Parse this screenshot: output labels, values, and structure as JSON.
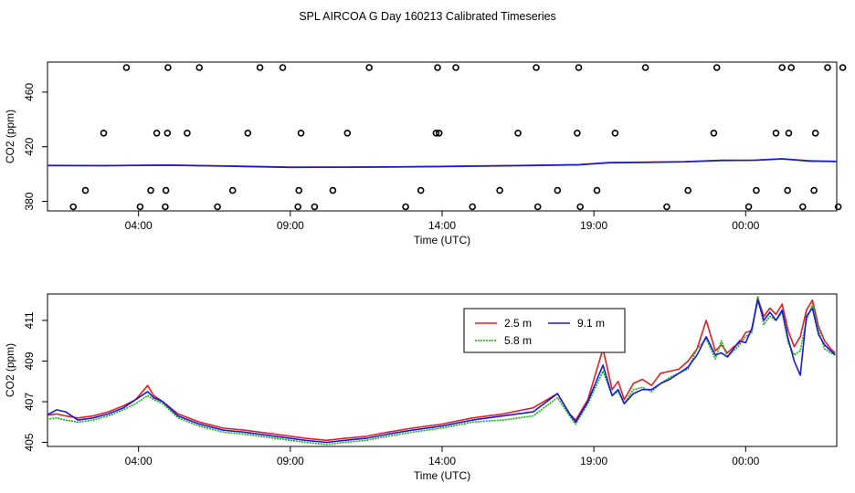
{
  "page_title": "SPL AIRCOA G  Day 160213  Calibrated Timeseries",
  "colors": {
    "red": "#e02020",
    "green": "#10b010",
    "blue": "#1818e0",
    "frame": "#000000"
  },
  "chart_data": [
    {
      "type": "scatter+line",
      "panel": "top",
      "title": "",
      "xlabel": "Time (UTC)",
      "ylabel": "CO2 (ppm)",
      "xlim": [
        0,
        26
      ],
      "ylim": [
        373,
        482
      ],
      "x_ticks": [
        3,
        8,
        13,
        18,
        23
      ],
      "x_tick_labels": [
        "04:00",
        "09:00",
        "14:00",
        "19:00",
        "00:00"
      ],
      "y_ticks": [
        380,
        420,
        460
      ],
      "y_tick_labels": [
        "380",
        "420",
        "460"
      ],
      "calibration_points": {
        "name": "calibration standards",
        "x": [
          0.85,
          1.25,
          1.85,
          2.6,
          3.05,
          3.4,
          3.6,
          3.88,
          3.9,
          3.95,
          3.97,
          4.6,
          5.0,
          5.6,
          6.1,
          6.6,
          7.0,
          7.75,
          8.25,
          8.28,
          8.35,
          8.8,
          9.4,
          9.88,
          10.6,
          11.8,
          12.3,
          12.8,
          12.85,
          12.9,
          13.45,
          14.0,
          14.9,
          15.5,
          16.1,
          16.15,
          16.8,
          17.45,
          17.5,
          17.55,
          18.1,
          18.7,
          19.7,
          20.4,
          21.1,
          21.95,
          22.05,
          23.1,
          23.35,
          24.0,
          24.2,
          24.38,
          24.42,
          24.5,
          24.88,
          25.25,
          25.3,
          25.7,
          26.05,
          26.2
        ],
        "y": [
          376,
          388,
          430,
          478,
          376,
          388,
          430,
          376,
          388,
          430,
          478,
          430,
          478,
          376,
          388,
          430,
          478,
          478,
          376,
          388,
          430,
          376,
          388,
          430,
          478,
          376,
          388,
          430,
          478,
          430,
          478,
          376,
          388,
          430,
          478,
          376,
          388,
          430,
          478,
          376,
          388,
          430,
          478,
          376,
          388,
          430,
          478,
          376,
          388,
          430,
          478,
          388,
          430,
          478,
          376,
          388,
          430,
          478,
          376,
          478
        ]
      },
      "series": [
        {
          "name": "2.5 m",
          "color": "red",
          "x": [
            -0.2,
            2,
            4,
            6,
            8,
            10,
            12,
            14,
            16,
            17.5,
            18.5,
            19.8,
            21,
            22.2,
            23.3,
            24.2,
            25.1,
            26
          ],
          "y": [
            406.2,
            406.2,
            406.6,
            405.9,
            405.0,
            405.1,
            405.3,
            405.9,
            406.4,
            406.9,
            408.4,
            408.8,
            409.1,
            410.1,
            410.2,
            411.2,
            409.7,
            409.2
          ]
        },
        {
          "name": "5.8 m",
          "color": "green",
          "x": [
            -0.2,
            2,
            4,
            6,
            8,
            10,
            12,
            14,
            16,
            17.5,
            18.5,
            19.8,
            21,
            22.2,
            23.3,
            24.2,
            25.1,
            26
          ],
          "y": [
            406.1,
            406.1,
            406.4,
            405.7,
            404.8,
            404.9,
            405.2,
            405.6,
            406.1,
            406.7,
            408.1,
            408.5,
            408.9,
            409.8,
            410.0,
            411.0,
            409.4,
            409.0
          ]
        },
        {
          "name": "9.1 m",
          "color": "blue",
          "x": [
            -0.2,
            2,
            4,
            6,
            8,
            10,
            12,
            14,
            16,
            17.5,
            18.5,
            19.8,
            21,
            22.2,
            23.3,
            24.2,
            25.1,
            26
          ],
          "y": [
            406.3,
            406.2,
            406.5,
            405.8,
            404.9,
            405.0,
            405.3,
            405.8,
            406.3,
            406.8,
            408.3,
            408.6,
            409.0,
            410.0,
            410.1,
            411.1,
            409.5,
            409.3
          ]
        }
      ]
    },
    {
      "type": "line",
      "panel": "bottom",
      "title": "",
      "xlabel": "Time (UTC)",
      "ylabel": "CO2 (ppm)",
      "xlim": [
        0,
        26
      ],
      "ylim": [
        404.8,
        412.3
      ],
      "x_ticks": [
        3,
        8,
        13,
        18,
        23
      ],
      "x_tick_labels": [
        "04:00",
        "09:00",
        "14:00",
        "19:00",
        "00:00"
      ],
      "y_ticks": [
        405,
        407,
        409,
        411
      ],
      "y_tick_labels": [
        "405",
        "407",
        "409",
        "411"
      ],
      "legend": {
        "position": "top-right"
      },
      "series": [
        {
          "name": "2.5 m",
          "color": "red",
          "x": [
            -0.2,
            0.3,
            0.6,
            1.0,
            1.5,
            2.0,
            2.5,
            2.9,
            3.3,
            3.5,
            3.8,
            4.3,
            5.0,
            5.8,
            6.5,
            7.5,
            8.5,
            9.2,
            9.8,
            10.5,
            11.2,
            12.0,
            13.0,
            14.0,
            15.0,
            16.0,
            16.8,
            17.2,
            17.4,
            17.8,
            18.3,
            18.6,
            18.8,
            19.0,
            19.3,
            19.6,
            19.9,
            20.2,
            20.5,
            20.8,
            21.1,
            21.4,
            21.7,
            22.0,
            22.2,
            22.4,
            22.6,
            22.8,
            23.0,
            23.2,
            23.4,
            23.6,
            23.8,
            24.0,
            24.2,
            24.4,
            24.6,
            24.8,
            25.0,
            25.2,
            25.4,
            25.6,
            25.8,
            25.95
          ],
          "y": [
            406.3,
            406.4,
            406.3,
            406.2,
            406.3,
            406.5,
            406.8,
            407.1,
            407.8,
            407.3,
            407.0,
            406.4,
            406.0,
            405.7,
            405.6,
            405.4,
            405.2,
            405.1,
            405.2,
            405.3,
            405.5,
            405.7,
            405.9,
            406.2,
            406.4,
            406.7,
            407.4,
            406.4,
            406.1,
            407.1,
            409.6,
            407.6,
            408.0,
            407.1,
            407.9,
            408.1,
            407.8,
            408.4,
            408.5,
            408.6,
            409.0,
            409.6,
            411.0,
            409.5,
            409.8,
            409.4,
            409.7,
            409.9,
            410.4,
            410.5,
            412.1,
            411.2,
            411.6,
            411.3,
            411.8,
            410.5,
            409.7,
            410.2,
            411.5,
            412.0,
            410.7,
            410.0,
            409.6,
            409.4
          ]
        },
        {
          "name": "5.8 m",
          "color": "green",
          "x": [
            -0.2,
            0.3,
            0.6,
            1.0,
            1.5,
            2.0,
            2.5,
            2.9,
            3.3,
            3.5,
            3.8,
            4.3,
            5.0,
            5.8,
            6.5,
            7.5,
            8.5,
            9.2,
            9.8,
            10.5,
            11.2,
            12.0,
            13.0,
            14.0,
            15.0,
            16.0,
            16.8,
            17.2,
            17.4,
            17.8,
            18.3,
            18.6,
            18.8,
            19.0,
            19.3,
            19.6,
            19.9,
            20.2,
            20.5,
            20.8,
            21.1,
            21.4,
            21.7,
            22.0,
            22.2,
            22.4,
            22.6,
            22.8,
            23.0,
            23.2,
            23.4,
            23.6,
            23.8,
            24.0,
            24.2,
            24.4,
            24.6,
            24.8,
            25.0,
            25.2,
            25.4,
            25.6,
            25.8,
            25.95
          ],
          "y": [
            406.1,
            406.2,
            406.1,
            406.0,
            406.1,
            406.3,
            406.6,
            406.9,
            407.3,
            407.1,
            406.9,
            406.2,
            405.8,
            405.5,
            405.4,
            405.2,
            405.0,
            404.9,
            405.0,
            405.1,
            405.3,
            405.5,
            405.7,
            406.0,
            406.1,
            406.3,
            407.2,
            406.3,
            405.9,
            406.9,
            408.5,
            407.3,
            407.5,
            406.9,
            407.6,
            407.7,
            407.5,
            407.9,
            408.2,
            408.4,
            408.6,
            409.6,
            410.1,
            409.1,
            410.0,
            409.2,
            409.5,
            409.8,
            410.2,
            410.4,
            412.2,
            410.8,
            411.2,
            411.0,
            411.4,
            409.9,
            409.3,
            409.5,
            411.0,
            411.8,
            410.5,
            409.6,
            409.4,
            409.3
          ]
        },
        {
          "name": "9.1 m",
          "color": "blue",
          "x": [
            -0.2,
            0.3,
            0.6,
            1.0,
            1.5,
            2.0,
            2.5,
            2.9,
            3.3,
            3.5,
            3.8,
            4.3,
            5.0,
            5.8,
            6.5,
            7.5,
            8.5,
            9.2,
            9.8,
            10.5,
            11.2,
            12.0,
            13.0,
            14.0,
            15.0,
            16.0,
            16.8,
            17.2,
            17.4,
            17.8,
            18.3,
            18.6,
            18.8,
            19.0,
            19.3,
            19.6,
            19.9,
            20.2,
            20.5,
            20.8,
            21.1,
            21.4,
            21.7,
            22.0,
            22.2,
            22.4,
            22.6,
            22.8,
            23.0,
            23.2,
            23.4,
            23.6,
            23.8,
            24.0,
            24.2,
            24.4,
            24.6,
            24.8,
            25.0,
            25.2,
            25.4,
            25.6,
            25.8,
            25.95
          ],
          "y": [
            406.2,
            406.6,
            406.5,
            406.1,
            406.2,
            406.4,
            406.7,
            407.1,
            407.5,
            407.2,
            407.0,
            406.3,
            405.9,
            405.6,
            405.5,
            405.3,
            405.1,
            405.0,
            405.1,
            405.2,
            405.4,
            405.6,
            405.8,
            406.1,
            406.3,
            406.5,
            407.4,
            406.4,
            406.0,
            407.0,
            408.8,
            407.3,
            407.6,
            406.9,
            407.4,
            407.6,
            407.6,
            407.9,
            408.1,
            408.4,
            408.7,
            409.3,
            410.2,
            409.3,
            409.4,
            409.2,
            409.6,
            410.0,
            409.9,
            410.6,
            412.0,
            411.0,
            411.4,
            411.0,
            411.5,
            410.1,
            409.0,
            408.3,
            411.2,
            411.6,
            410.3,
            409.8,
            409.5,
            409.3
          ]
        }
      ]
    }
  ]
}
